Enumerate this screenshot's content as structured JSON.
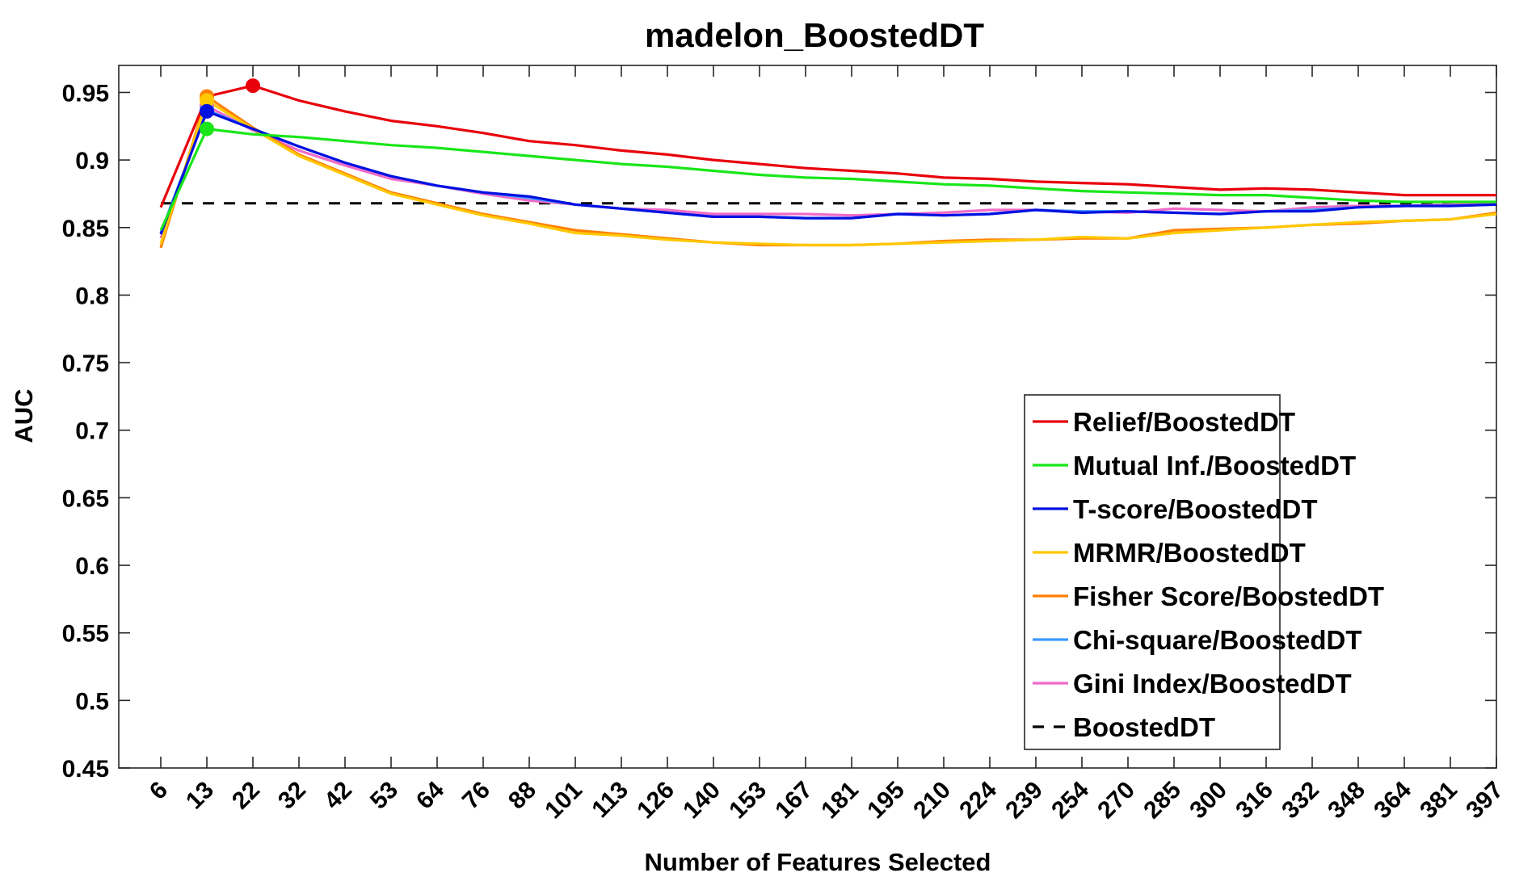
{
  "chart_data": {
    "type": "line",
    "title": "madelon_BoostedDT",
    "xlabel": "Number of Features Selected",
    "ylabel": "AUC",
    "ylim": [
      0.45,
      0.97
    ],
    "yticks": [
      0.45,
      0.5,
      0.55,
      0.6,
      0.65,
      0.7,
      0.75,
      0.8,
      0.85,
      0.9,
      0.95
    ],
    "ytick_labels": [
      "0.45",
      "0.5",
      "0.55",
      "0.6",
      "0.65",
      "0.7",
      "0.75",
      "0.8",
      "0.85",
      "0.9",
      "0.95"
    ],
    "x": [
      "6",
      "13",
      "22",
      "32",
      "42",
      "53",
      "64",
      "76",
      "88",
      "101",
      "113",
      "126",
      "140",
      "153",
      "167",
      "181",
      "195",
      "210",
      "224",
      "239",
      "254",
      "270",
      "285",
      "300",
      "316",
      "332",
      "348",
      "364",
      "381",
      "397"
    ],
    "grid": false,
    "legend_position": "lower-right",
    "series": [
      {
        "name": "Relief/BoostedDT",
        "color": "#e8000b",
        "dash": "solid",
        "values": [
          0.865,
          0.947,
          0.955,
          0.944,
          0.936,
          0.929,
          0.925,
          0.92,
          0.914,
          0.911,
          0.907,
          0.904,
          0.9,
          0.897,
          0.894,
          0.892,
          0.89,
          0.887,
          0.886,
          0.884,
          0.883,
          0.882,
          0.88,
          0.878,
          0.879,
          0.878,
          0.876,
          0.874,
          0.874,
          0.874
        ],
        "marker_index": 2
      },
      {
        "name": "Mutual Inf./BoostedDT",
        "color": "#19e619",
        "dash": "solid",
        "values": [
          0.848,
          0.923,
          0.919,
          0.917,
          0.914,
          0.911,
          0.909,
          0.906,
          0.903,
          0.9,
          0.897,
          0.895,
          0.892,
          0.889,
          0.887,
          0.886,
          0.884,
          0.882,
          0.881,
          0.879,
          0.877,
          0.876,
          0.875,
          0.874,
          0.874,
          0.872,
          0.87,
          0.869,
          0.869,
          0.869
        ],
        "marker_index": 1
      },
      {
        "name": "T-score/BoostedDT",
        "color": "#0010e0",
        "dash": "solid",
        "values": [
          0.845,
          0.936,
          0.923,
          0.91,
          0.898,
          0.888,
          0.881,
          0.876,
          0.873,
          0.867,
          0.864,
          0.861,
          0.858,
          0.858,
          0.857,
          0.857,
          0.86,
          0.859,
          0.86,
          0.863,
          0.861,
          0.862,
          0.861,
          0.86,
          0.862,
          0.862,
          0.865,
          0.866,
          0.866,
          0.867
        ],
        "marker_index": 1
      },
      {
        "name": "MRMR/BoostedDT",
        "color": "#ffc800",
        "dash": "solid",
        "values": [
          0.838,
          0.944,
          0.923,
          0.903,
          0.889,
          0.875,
          0.867,
          0.859,
          0.853,
          0.846,
          0.844,
          0.841,
          0.839,
          0.838,
          0.837,
          0.837,
          0.838,
          0.839,
          0.84,
          0.841,
          0.843,
          0.842,
          0.846,
          0.848,
          0.85,
          0.852,
          0.854,
          0.855,
          0.856,
          0.86
        ],
        "marker_index": 1
      },
      {
        "name": "Fisher Score/BoostedDT",
        "color": "#ff8000",
        "dash": "solid",
        "values": [
          0.835,
          0.947,
          0.924,
          0.904,
          0.89,
          0.876,
          0.868,
          0.86,
          0.854,
          0.848,
          0.845,
          0.842,
          0.839,
          0.837,
          0.837,
          0.837,
          0.838,
          0.84,
          0.841,
          0.841,
          0.842,
          0.842,
          0.848,
          0.849,
          0.85,
          0.852,
          0.853,
          0.855,
          0.856,
          0.861
        ],
        "marker_index": 1
      },
      {
        "name": "Chi-square/BoostedDT",
        "color": "#3b9aff",
        "dash": "solid",
        "values": [
          0.846,
          0.937,
          0.923,
          0.91,
          0.898,
          0.888,
          0.881,
          0.876,
          0.872,
          0.867,
          0.864,
          0.861,
          0.858,
          0.858,
          0.857,
          0.857,
          0.86,
          0.859,
          0.86,
          0.863,
          0.862,
          0.862,
          0.861,
          0.86,
          0.862,
          0.863,
          0.865,
          0.866,
          0.866,
          0.867
        ],
        "marker_index": 1
      },
      {
        "name": "Gini Index/BoostedDT",
        "color": "#f06ac8",
        "dash": "solid",
        "values": [
          0.842,
          0.94,
          0.922,
          0.907,
          0.896,
          0.886,
          0.881,
          0.875,
          0.87,
          0.867,
          0.864,
          0.863,
          0.86,
          0.86,
          0.86,
          0.859,
          0.86,
          0.861,
          0.863,
          0.863,
          0.862,
          0.861,
          0.864,
          0.863,
          0.862,
          0.865,
          0.866,
          0.866,
          0.867,
          0.868
        ],
        "marker_index": 1
      },
      {
        "name": "BoostedDT",
        "color": "#000000",
        "dash": "dashed",
        "values": [
          0.868,
          0.868,
          0.868,
          0.868,
          0.868,
          0.868,
          0.868,
          0.868,
          0.868,
          0.868,
          0.868,
          0.868,
          0.868,
          0.868,
          0.868,
          0.868,
          0.868,
          0.868,
          0.868,
          0.868,
          0.868,
          0.868,
          0.868,
          0.868,
          0.868,
          0.868,
          0.868,
          0.868,
          0.868,
          0.868
        ]
      }
    ]
  }
}
